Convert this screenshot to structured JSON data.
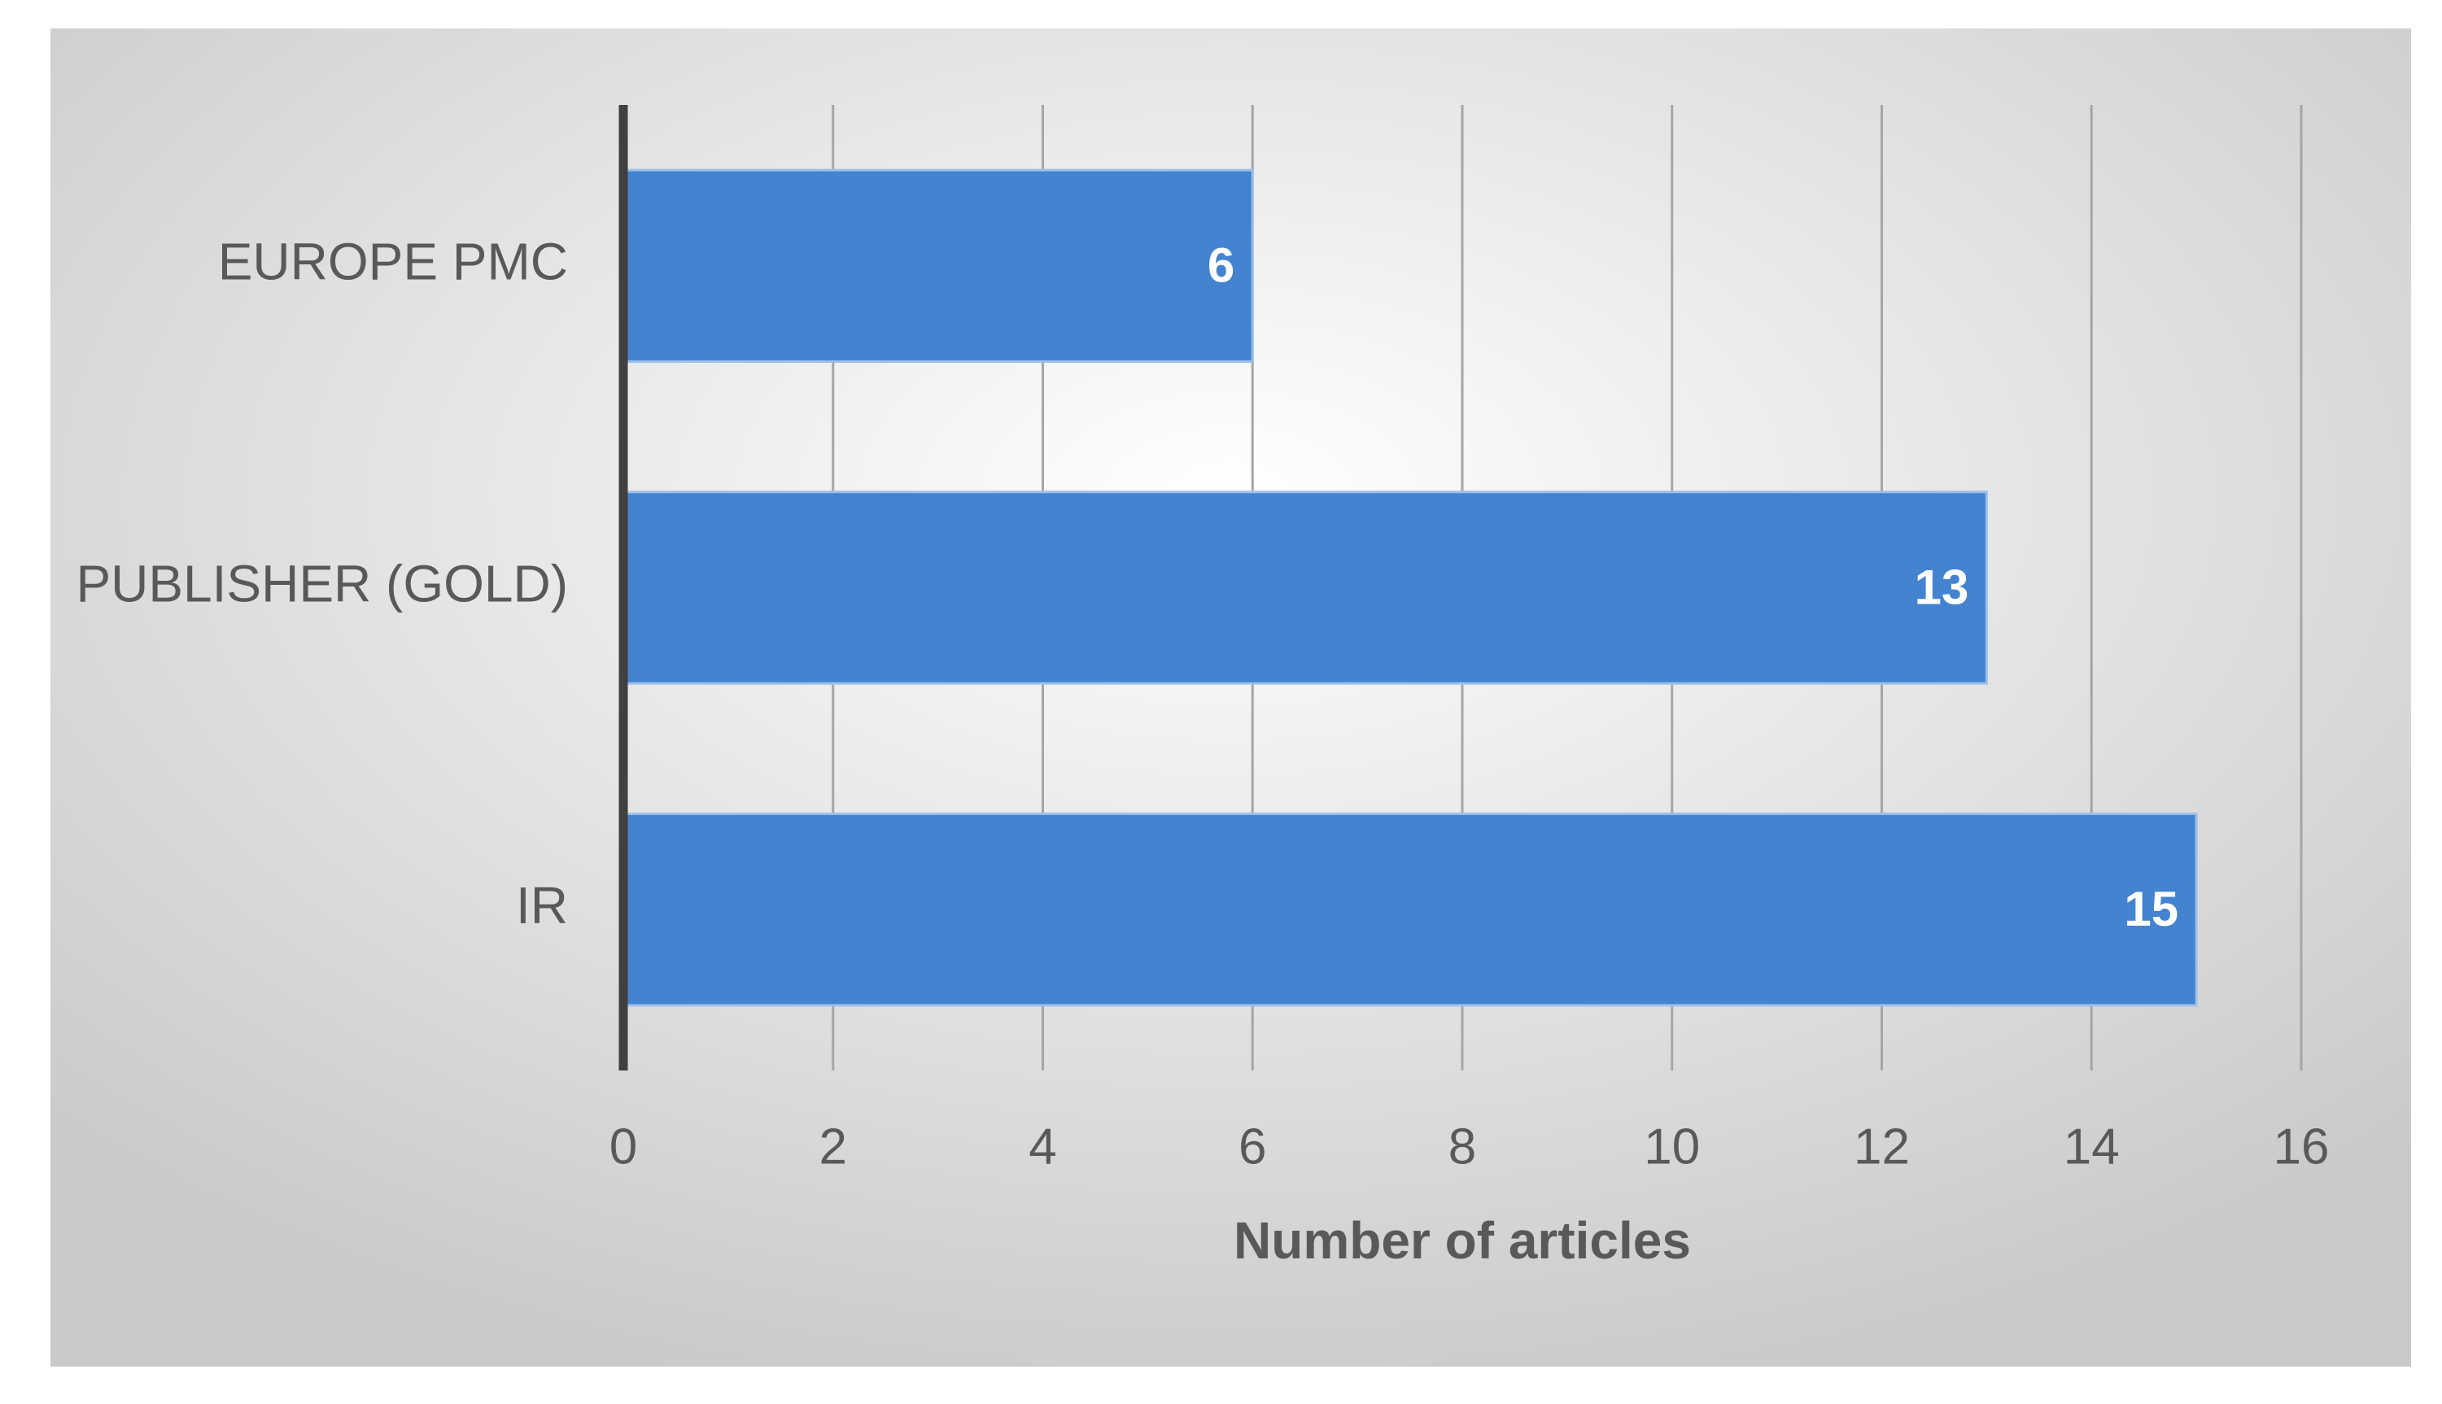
{
  "chart_data": {
    "type": "bar",
    "orientation": "horizontal",
    "x_label": "Number of articles",
    "categories": [
      "EUROPE PMC",
      "PUBLISHER (GOLD)",
      "IR"
    ],
    "values": [
      6,
      13,
      15
    ],
    "color": "#4383cf",
    "xlim": [
      0,
      16
    ],
    "xticks": [
      0,
      2,
      4,
      6,
      8,
      10,
      12,
      14,
      16
    ],
    "grid": true,
    "data_labels": true
  }
}
